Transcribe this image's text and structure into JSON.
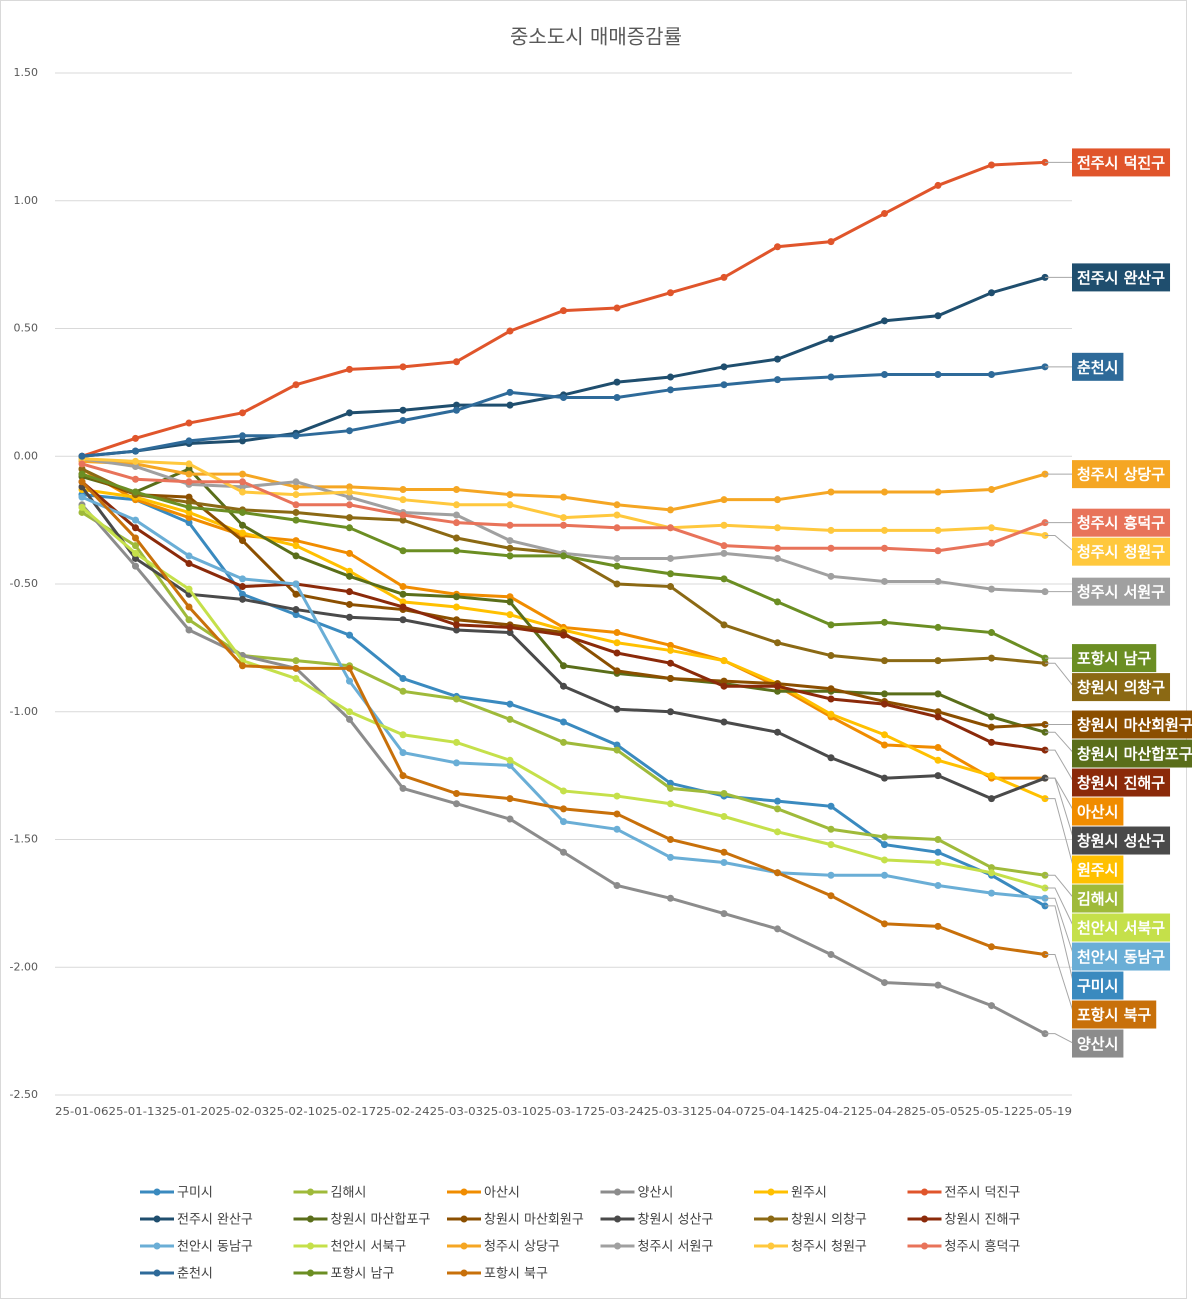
{
  "chart_data": {
    "type": "line",
    "title": "중소도시 매매증감률",
    "categories": [
      "25-01-06",
      "25-01-13",
      "25-01-20",
      "25-02-03",
      "25-02-10",
      "25-02-17",
      "25-02-24",
      "25-03-03",
      "25-03-10",
      "25-03-17",
      "25-03-24",
      "25-03-31",
      "25-04-07",
      "25-04-14",
      "25-04-21",
      "25-04-28",
      "25-05-05",
      "25-05-12",
      "25-05-19"
    ],
    "ylim": [
      -2.5,
      1.5
    ],
    "yticks": [
      {
        "value": 1.5,
        "label": "1.50"
      },
      {
        "value": 1,
        "label": "1.00"
      },
      {
        "value": 0.5,
        "label": "0.50"
      },
      {
        "value": 0,
        "label": "0.00"
      },
      {
        "value": -0.5,
        "label": "-0.50"
      },
      {
        "value": -1,
        "label": "-1.00"
      },
      {
        "value": -1.5,
        "label": "-1.50"
      },
      {
        "value": -2,
        "label": "-2.00"
      },
      {
        "value": -2.5,
        "label": "-2.50"
      }
    ],
    "grid": true,
    "legend": "bottom",
    "series": [
      {
        "name": "구미시",
        "color": "#3a8abf",
        "values": [
          -0.15,
          -0.17,
          -0.26,
          -0.54,
          -0.62,
          -0.7,
          -0.87,
          -0.94,
          -0.97,
          -1.04,
          -1.13,
          -1.28,
          -1.33,
          -1.35,
          -1.37,
          -1.52,
          -1.55,
          -1.64,
          -1.76
        ]
      },
      {
        "name": "김해시",
        "color": "#9fba3a",
        "values": [
          -0.22,
          -0.35,
          -0.64,
          -0.78,
          -0.8,
          -0.82,
          -0.92,
          -0.95,
          -1.03,
          -1.12,
          -1.15,
          -1.3,
          -1.32,
          -1.38,
          -1.46,
          -1.49,
          -1.5,
          -1.61,
          -1.64
        ]
      },
      {
        "name": "아산시",
        "color": "#f08c00",
        "values": [
          -0.05,
          -0.17,
          -0.24,
          -0.31,
          -0.33,
          -0.38,
          -0.51,
          -0.54,
          -0.55,
          -0.67,
          -0.69,
          -0.74,
          -0.8,
          -0.9,
          -1.02,
          -1.13,
          -1.14,
          -1.26,
          -1.26
        ]
      },
      {
        "name": "양산시",
        "color": "#8c8c8c",
        "values": [
          -0.19,
          -0.43,
          -0.68,
          -0.78,
          -0.83,
          -1.03,
          -1.3,
          -1.36,
          -1.42,
          -1.55,
          -1.68,
          -1.73,
          -1.79,
          -1.85,
          -1.95,
          -2.06,
          -2.07,
          -2.15,
          -2.26
        ]
      },
      {
        "name": "원주시",
        "color": "#ffc000",
        "values": [
          -0.13,
          -0.16,
          -0.22,
          -0.3,
          -0.35,
          -0.45,
          -0.57,
          -0.59,
          -0.62,
          -0.68,
          -0.73,
          -0.76,
          -0.8,
          -0.89,
          -1.01,
          -1.09,
          -1.19,
          -1.25,
          -1.34
        ]
      },
      {
        "name": "전주시 덕진구",
        "color": "#e0552b",
        "values": [
          0.0,
          0.07,
          0.13,
          0.17,
          0.28,
          0.34,
          0.35,
          0.37,
          0.49,
          0.57,
          0.58,
          0.64,
          0.7,
          0.82,
          0.84,
          0.95,
          1.06,
          1.14,
          1.15
        ]
      },
      {
        "name": "전주시 완산구",
        "color": "#1f4e6e",
        "values": [
          0.0,
          0.02,
          0.05,
          0.06,
          0.09,
          0.17,
          0.18,
          0.2,
          0.2,
          0.24,
          0.29,
          0.31,
          0.35,
          0.38,
          0.46,
          0.53,
          0.55,
          0.64,
          0.7
        ]
      },
      {
        "name": "창원시 마산합포구",
        "color": "#5a6e1a",
        "values": [
          -0.08,
          -0.14,
          -0.05,
          -0.27,
          -0.39,
          -0.47,
          -0.54,
          -0.55,
          -0.57,
          -0.82,
          -0.85,
          -0.87,
          -0.89,
          -0.92,
          -0.92,
          -0.93,
          -0.93,
          -1.02,
          -1.08
        ]
      },
      {
        "name": "창원시 마산회원구",
        "color": "#8b4f00",
        "values": [
          -0.07,
          -0.15,
          -0.16,
          -0.33,
          -0.54,
          -0.58,
          -0.6,
          -0.64,
          -0.66,
          -0.69,
          -0.84,
          -0.87,
          -0.88,
          -0.89,
          -0.91,
          -0.96,
          -1.0,
          -1.06,
          -1.05
        ]
      },
      {
        "name": "창원시 성산구",
        "color": "#4a4a4a",
        "values": [
          -0.12,
          -0.4,
          -0.54,
          -0.56,
          -0.6,
          -0.63,
          -0.64,
          -0.68,
          -0.69,
          -0.9,
          -0.99,
          -1.0,
          -1.04,
          -1.08,
          -1.18,
          -1.26,
          -1.25,
          -1.34,
          -1.26
        ]
      },
      {
        "name": "창원시 의창구",
        "color": "#8b6914",
        "values": [
          -0.05,
          -0.15,
          -0.18,
          -0.21,
          -0.22,
          -0.24,
          -0.25,
          -0.32,
          -0.36,
          -0.38,
          -0.5,
          -0.51,
          -0.66,
          -0.73,
          -0.78,
          -0.8,
          -0.8,
          -0.79,
          -0.81
        ]
      },
      {
        "name": "창원시 진해구",
        "color": "#8b2a0a",
        "values": [
          -0.1,
          -0.28,
          -0.42,
          -0.51,
          -0.5,
          -0.53,
          -0.59,
          -0.66,
          -0.67,
          -0.7,
          -0.77,
          -0.81,
          -0.9,
          -0.9,
          -0.95,
          -0.97,
          -1.02,
          -1.12,
          -1.15
        ]
      },
      {
        "name": "천안시 동남구",
        "color": "#6aaed6",
        "values": [
          -0.16,
          -0.25,
          -0.39,
          -0.48,
          -0.5,
          -0.88,
          -1.16,
          -1.2,
          -1.21,
          -1.43,
          -1.46,
          -1.57,
          -1.59,
          -1.63,
          -1.64,
          -1.64,
          -1.68,
          -1.71,
          -1.73
        ]
      },
      {
        "name": "천안시 서북구",
        "color": "#c5e04a",
        "values": [
          -0.2,
          -0.38,
          -0.52,
          -0.8,
          -0.87,
          -1.0,
          -1.09,
          -1.12,
          -1.19,
          -1.31,
          -1.33,
          -1.36,
          -1.41,
          -1.47,
          -1.52,
          -1.58,
          -1.59,
          -1.63,
          -1.69
        ]
      },
      {
        "name": "청주시 상당구",
        "color": "#f5a623",
        "values": [
          -0.02,
          -0.03,
          -0.07,
          -0.07,
          -0.12,
          -0.12,
          -0.13,
          -0.13,
          -0.15,
          -0.16,
          -0.19,
          -0.21,
          -0.17,
          -0.17,
          -0.14,
          -0.14,
          -0.14,
          -0.13,
          -0.07
        ]
      },
      {
        "name": "청주시 서원구",
        "color": "#a0a0a0",
        "values": [
          -0.01,
          -0.04,
          -0.11,
          -0.12,
          -0.1,
          -0.16,
          -0.22,
          -0.23,
          -0.33,
          -0.38,
          -0.4,
          -0.4,
          -0.38,
          -0.4,
          -0.47,
          -0.49,
          -0.49,
          -0.52,
          -0.53
        ]
      },
      {
        "name": "청주시 청원구",
        "color": "#ffc83d",
        "values": [
          -0.01,
          -0.02,
          -0.03,
          -0.14,
          -0.15,
          -0.14,
          -0.17,
          -0.19,
          -0.19,
          -0.24,
          -0.23,
          -0.28,
          -0.27,
          -0.28,
          -0.29,
          -0.29,
          -0.29,
          -0.28,
          -0.31
        ]
      },
      {
        "name": "청주시 흥덕구",
        "color": "#e8735a",
        "values": [
          -0.03,
          -0.09,
          -0.1,
          -0.1,
          -0.19,
          -0.19,
          -0.23,
          -0.26,
          -0.27,
          -0.27,
          -0.28,
          -0.28,
          -0.35,
          -0.36,
          -0.36,
          -0.36,
          -0.37,
          -0.34,
          -0.26
        ]
      },
      {
        "name": "춘천시",
        "color": "#2e6a99",
        "values": [
          0.0,
          0.02,
          0.06,
          0.08,
          0.08,
          0.1,
          0.14,
          0.18,
          0.25,
          0.23,
          0.23,
          0.26,
          0.28,
          0.3,
          0.31,
          0.32,
          0.32,
          0.32,
          0.35
        ]
      },
      {
        "name": "포항시 남구",
        "color": "#6b8e23",
        "values": [
          -0.07,
          -0.14,
          -0.2,
          -0.22,
          -0.25,
          -0.28,
          -0.37,
          -0.37,
          -0.39,
          -0.39,
          -0.43,
          -0.46,
          -0.48,
          -0.57,
          -0.66,
          -0.65,
          -0.67,
          -0.69,
          -0.79
        ]
      },
      {
        "name": "포항시 북구",
        "color": "#c8700a",
        "values": [
          -0.1,
          -0.32,
          -0.59,
          -0.82,
          -0.83,
          -0.83,
          -1.25,
          -1.32,
          -1.34,
          -1.38,
          -1.4,
          -1.5,
          -1.55,
          -1.63,
          -1.72,
          -1.83,
          -1.84,
          -1.92,
          -1.95
        ]
      }
    ]
  }
}
